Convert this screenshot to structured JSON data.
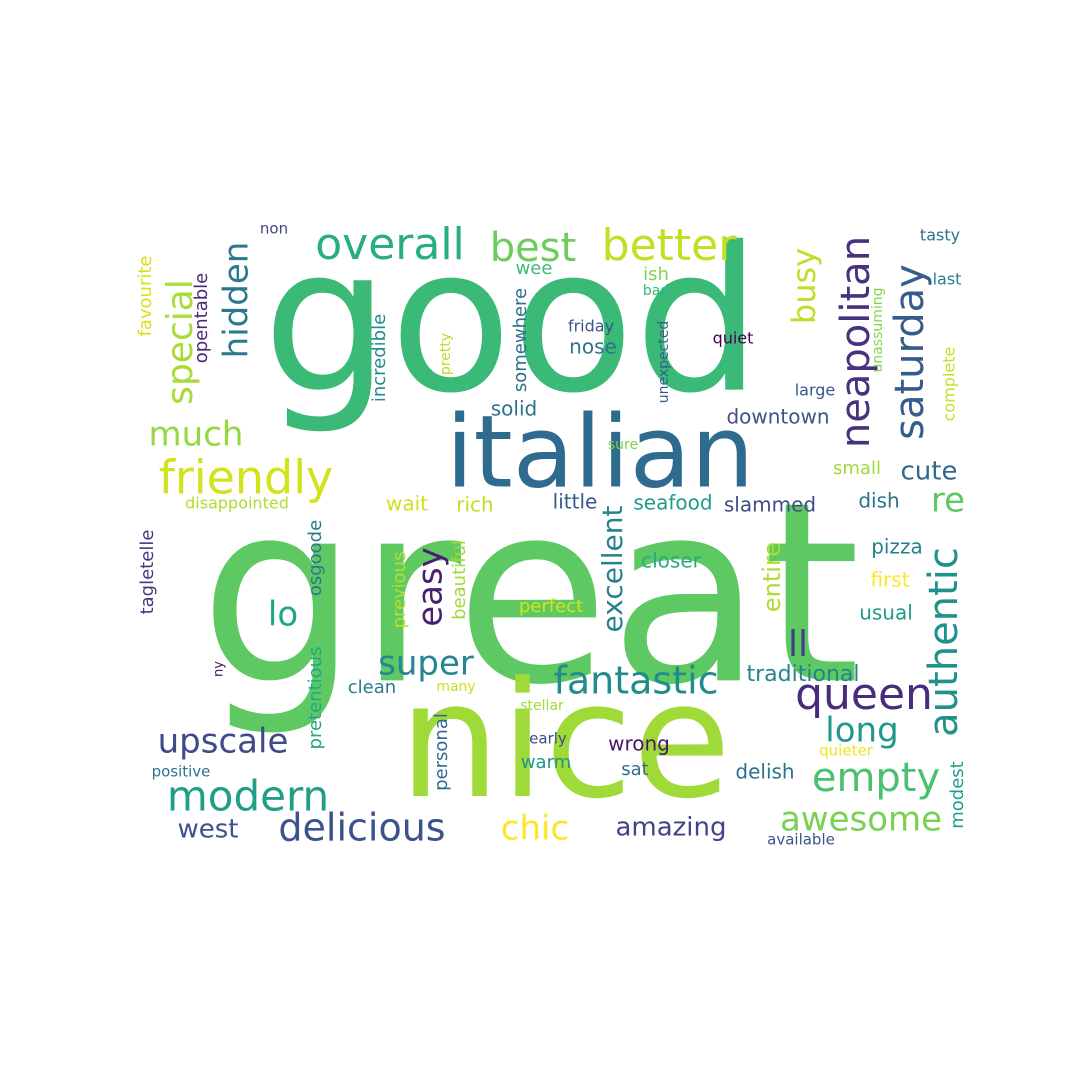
{
  "words": [
    {
      "text": "great",
      "color": "#5ec962"
    },
    {
      "text": "good",
      "color": "#3aba76"
    },
    {
      "text": "nice",
      "color": "#a0da39"
    },
    {
      "text": "italian",
      "color": "#2f6b8e"
    },
    {
      "text": "friendly",
      "color": "#d2e21b"
    },
    {
      "text": "overall",
      "color": "#29af7f"
    },
    {
      "text": "best",
      "color": "#6ccd5a"
    },
    {
      "text": "better",
      "color": "#c2df23"
    },
    {
      "text": "neapolitan",
      "color": "#46327e"
    },
    {
      "text": "saturday",
      "color": "#365c8d"
    },
    {
      "text": "queen",
      "color": "#472d7b"
    },
    {
      "text": "empty",
      "color": "#4ac16d"
    },
    {
      "text": "authentic",
      "color": "#21918c"
    },
    {
      "text": "fantastic",
      "color": "#228c8d"
    },
    {
      "text": "modern",
      "color": "#1f9f88"
    },
    {
      "text": "delicious",
      "color": "#3b528b"
    },
    {
      "text": "awesome",
      "color": "#7ad151"
    },
    {
      "text": "upscale",
      "color": "#3e4a89"
    },
    {
      "text": "super",
      "color": "#24868e"
    },
    {
      "text": "much",
      "color": "#95d840"
    },
    {
      "text": "special",
      "color": "#a8db34"
    },
    {
      "text": "hidden",
      "color": "#2a788e"
    },
    {
      "text": "busy",
      "color": "#bddf26"
    },
    {
      "text": "easy",
      "color": "#481f70"
    },
    {
      "text": "long",
      "color": "#1f988b"
    },
    {
      "text": "chic",
      "color": "#fde725"
    },
    {
      "text": "lo",
      "color": "#20a486"
    },
    {
      "text": "ll",
      "color": "#433e85"
    },
    {
      "text": "re",
      "color": "#5ec962"
    },
    {
      "text": "cute",
      "color": "#31688e"
    },
    {
      "text": "excellent",
      "color": "#26828e"
    },
    {
      "text": "amazing",
      "color": "#414487"
    },
    {
      "text": "west",
      "color": "#3b528b"
    },
    {
      "text": "entire",
      "color": "#addc30"
    },
    {
      "text": "traditional",
      "color": "#25848e"
    },
    {
      "text": "delish",
      "color": "#2c728e"
    },
    {
      "text": "modest",
      "color": "#1fa188"
    },
    {
      "text": "closer",
      "color": "#25ab82"
    },
    {
      "text": "favourite",
      "color": "#d8e219"
    },
    {
      "text": "opentable",
      "color": "#482878"
    },
    {
      "text": "tagletelle",
      "color": "#443983"
    },
    {
      "text": "pretentious",
      "color": "#22a785"
    },
    {
      "text": "osgoode",
      "color": "#2a788e"
    },
    {
      "text": "previous",
      "color": "#b5de2b"
    },
    {
      "text": "beautiful",
      "color": "#a2da37"
    },
    {
      "text": "incredible",
      "color": "#238a8d"
    },
    {
      "text": "somewhere",
      "color": "#2e6f8e"
    },
    {
      "text": "personal",
      "color": "#2f6b8e"
    },
    {
      "text": "pretty",
      "color": "#b8de29"
    },
    {
      "text": "unexpected",
      "color": "#355f8d"
    },
    {
      "text": "unassuming",
      "color": "#86d549"
    },
    {
      "text": "complete",
      "color": "#c5e021"
    },
    {
      "text": "downtown",
      "color": "#3b528b"
    },
    {
      "text": "solid",
      "color": "#2d708e"
    },
    {
      "text": "nose",
      "color": "#2c738e"
    },
    {
      "text": "wee",
      "color": "#3bbb75"
    },
    {
      "text": "ish",
      "color": "#84d44b"
    },
    {
      "text": "bad",
      "color": "#31b57b"
    },
    {
      "text": "friday",
      "color": "#39568c"
    },
    {
      "text": "quiet",
      "color": "#440154"
    },
    {
      "text": "large",
      "color": "#39568c"
    },
    {
      "text": "tasty",
      "color": "#2c728e"
    },
    {
      "text": "last",
      "color": "#277f8e"
    },
    {
      "text": "non",
      "color": "#404688"
    },
    {
      "text": "sure",
      "color": "#7fd34e"
    },
    {
      "text": "small",
      "color": "#9fda3a"
    },
    {
      "text": "dish",
      "color": "#2c728e"
    },
    {
      "text": "pizza",
      "color": "#27808e"
    },
    {
      "text": "first",
      "color": "#fde725"
    },
    {
      "text": "usual",
      "color": "#1f9a8a"
    },
    {
      "text": "slammed",
      "color": "#3e4c8a"
    },
    {
      "text": "seafood",
      "color": "#1e9c89"
    },
    {
      "text": "little",
      "color": "#38598c"
    },
    {
      "text": "rich",
      "color": "#c0df25"
    },
    {
      "text": "wait",
      "color": "#d0e11c"
    },
    {
      "text": "disappointed",
      "color": "#b0dd2f"
    },
    {
      "text": "perfect",
      "color": "#d5e21a"
    },
    {
      "text": "clean",
      "color": "#287c8e"
    },
    {
      "text": "many",
      "color": "#c8e020"
    },
    {
      "text": "stellar",
      "color": "#a2da37"
    },
    {
      "text": "early",
      "color": "#3e4989"
    },
    {
      "text": "wrong",
      "color": "#481769"
    },
    {
      "text": "warm",
      "color": "#1f968b"
    },
    {
      "text": "sat",
      "color": "#2e6d8e"
    },
    {
      "text": "quieter",
      "color": "#ece51b"
    },
    {
      "text": "available",
      "color": "#3b528b"
    },
    {
      "text": "positive",
      "color": "#2c738e"
    },
    {
      "text": "ny",
      "color": "#481467"
    }
  ]
}
